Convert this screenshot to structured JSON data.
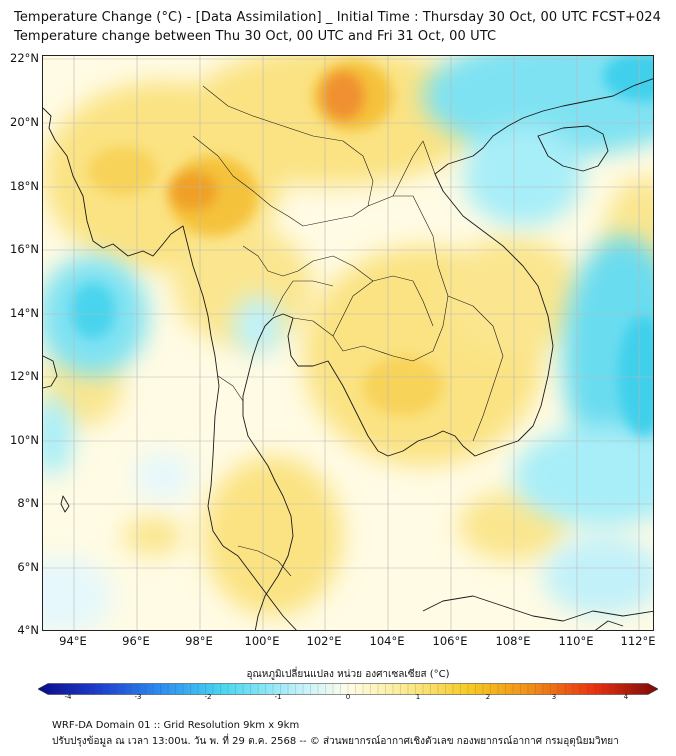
{
  "title": {
    "line1": "Temperature Change (°C) - [Data Assimilation] _ Initial Time : Thursday 30 Oct, 00 UTC FCST+024",
    "line2": "Temperature change between Thu 30 Oct, 00 UTC and Fri 31 Oct, 00 UTC"
  },
  "axes": {
    "lat_labels": [
      "22°N",
      "20°N",
      "18°N",
      "16°N",
      "14°N",
      "12°N",
      "10°N",
      "8°N",
      "6°N",
      "4°N"
    ],
    "lon_labels": [
      "94°E",
      "96°E",
      "98°E",
      "100°E",
      "102°E",
      "104°E",
      "106°E",
      "108°E",
      "110°E",
      "112°E"
    ],
    "lat_range": [
      4,
      22.2
    ],
    "lon_range": [
      93,
      112.5
    ]
  },
  "colorbar": {
    "title": "อุณหภูมิเปลี่ยนแปลง หน่วย องศาเซลเซียส (°C)",
    "ticks": [
      "-4",
      "-3",
      "-2",
      "-1",
      "0",
      "1",
      "2",
      "3",
      "4"
    ],
    "range": [
      -4,
      4
    ],
    "colors": [
      "#0a0a8a",
      "#1e3fd0",
      "#2e8ff0",
      "#48d8f0",
      "#c8f2fa",
      "#fffde8",
      "#fbe88a",
      "#f6c820",
      "#f08a18",
      "#e83010",
      "#7a0a0a"
    ]
  },
  "footer": {
    "line1": "WRF-DA Domain 01 :: Grid Resolution 9km x 9km",
    "line2": "ปรับปรุงข้อมูล ณ เวลา 13:00น. วัน พ. ที่ 29 ต.ค. 2568 -- © ส่วนพยากรณ์อากาศเชิงตัวเลข กองพยากรณ์อากาศ กรมอุตุนิยมวิทยา"
  },
  "field_description": {
    "warm_max_regions": [
      "northern Laos",
      "northwestern Thailand / eastern Myanmar"
    ],
    "cool_regions": [
      "Gulf of Tonkin / southern China coast",
      "South China Sea east of Vietnam",
      "Andaman Sea west of Myanmar",
      "upper Gulf of Thailand"
    ]
  }
}
